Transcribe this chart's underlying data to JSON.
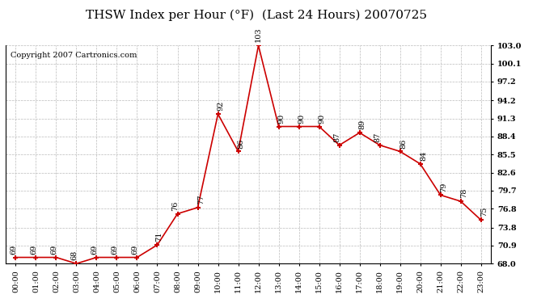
{
  "title": "THSW Index per Hour (°F)  (Last 24 Hours) 20070725",
  "copyright": "Copyright 2007 Cartronics.com",
  "hours": [
    "00:00",
    "01:00",
    "02:00",
    "03:00",
    "04:00",
    "05:00",
    "06:00",
    "07:00",
    "08:00",
    "09:00",
    "10:00",
    "11:00",
    "12:00",
    "13:00",
    "14:00",
    "15:00",
    "16:00",
    "17:00",
    "18:00",
    "19:00",
    "20:00",
    "21:00",
    "22:00",
    "23:00"
  ],
  "data_values": [
    69,
    69,
    69,
    68,
    69,
    69,
    69,
    71,
    76,
    77,
    92,
    86,
    103,
    90,
    90,
    90,
    87,
    89,
    87,
    86,
    84,
    79,
    78,
    75
  ],
  "x_indices": [
    0,
    1,
    2,
    3,
    4,
    5,
    6,
    7,
    8,
    9,
    10,
    11,
    12,
    13,
    14,
    15,
    16,
    17,
    18,
    19,
    20,
    21,
    22,
    23
  ],
  "ylim": [
    68.0,
    103.0
  ],
  "yticks": [
    68.0,
    70.9,
    73.8,
    76.8,
    79.7,
    82.6,
    85.5,
    88.4,
    91.3,
    94.2,
    97.2,
    100.1,
    103.0
  ],
  "line_color": "#cc0000",
  "marker_color": "#cc0000",
  "bg_color": "#ffffff",
  "grid_color": "#bbbbbb",
  "title_fontsize": 11,
  "copyright_fontsize": 7,
  "label_fontsize": 7,
  "tick_fontsize": 7
}
